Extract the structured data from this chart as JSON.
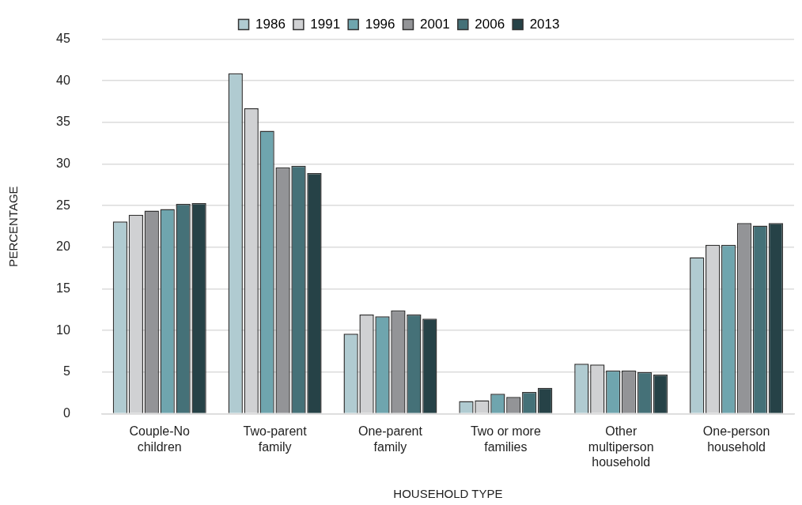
{
  "chart_data": {
    "type": "bar",
    "xlabel": "HOUSEHOLD TYPE",
    "ylabel": "PERCENTAGE",
    "categories": [
      "Couple-No children",
      "Two-parent family",
      "One-parent family",
      "Two or more families",
      "Other multiperson household",
      "One-person household"
    ],
    "series": [
      {
        "name": "1986",
        "color": "#b0cbd1",
        "values": [
          23.1,
          40.9,
          9.6,
          1.5,
          6.0,
          18.8
        ]
      },
      {
        "name": "1991",
        "color": "#d0d1d3",
        "values": [
          23.9,
          36.7,
          11.9,
          1.6,
          5.9,
          20.3
        ]
      },
      {
        "name": "1996",
        "color": "#6fa5ae",
        "colors": [
          "#939497",
          "#6fa5ae",
          "#6fa5ae",
          "#6fa5ae",
          "#6fa5ae",
          "#6fa5ae"
        ],
        "values": [
          24.4,
          34.0,
          11.7,
          2.4,
          5.2,
          20.3
        ]
      },
      {
        "name": "2001",
        "color": "#939497",
        "colors": [
          "#6fa5ae",
          "#939497",
          "#939497",
          "#939497",
          "#939497",
          "#939497"
        ],
        "values": [
          24.6,
          29.6,
          12.4,
          2.0,
          5.2,
          22.9
        ]
      },
      {
        "name": "2006",
        "color": "#457178",
        "values": [
          25.2,
          29.8,
          11.9,
          2.6,
          5.0,
          22.6
        ]
      },
      {
        "name": "2013",
        "color": "#264247",
        "values": [
          25.3,
          28.9,
          11.4,
          3.1,
          4.7,
          22.9
        ]
      }
    ],
    "ylim": [
      0,
      45
    ],
    "yticks": [
      0,
      5,
      10,
      15,
      20,
      25,
      30,
      35,
      40,
      45
    ],
    "grid": "y",
    "legend": "top"
  }
}
